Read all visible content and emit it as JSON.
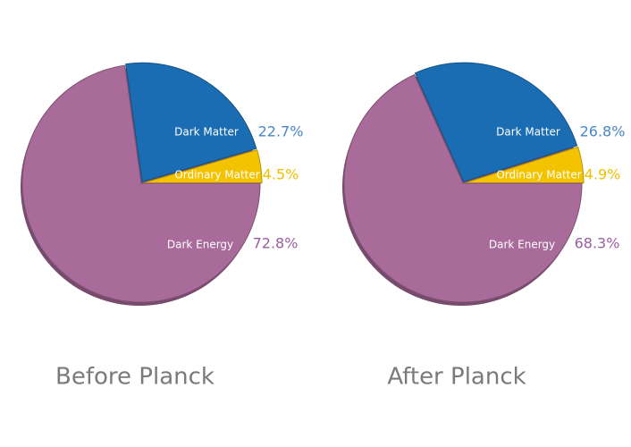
{
  "chart_data": [
    {
      "type": "pie",
      "title": "Before Planck",
      "categories": [
        "Dark Matter",
        "Ordinary Matter",
        "Dark Energy"
      ],
      "values": [
        22.7,
        4.5,
        72.8
      ],
      "value_labels": [
        "22.7%",
        "4.5%",
        "72.8%"
      ],
      "colors": [
        "#1b6db3",
        "#f4c300",
        "#a86b9a"
      ]
    },
    {
      "type": "pie",
      "title": "After Planck",
      "categories": [
        "Dark Matter",
        "Ordinary Matter",
        "Dark Energy"
      ],
      "values": [
        26.8,
        4.9,
        68.3
      ],
      "value_labels": [
        "26.8%",
        "4.9%",
        "68.3%"
      ],
      "colors": [
        "#1b6db3",
        "#f4c300",
        "#a86b9a"
      ]
    }
  ]
}
